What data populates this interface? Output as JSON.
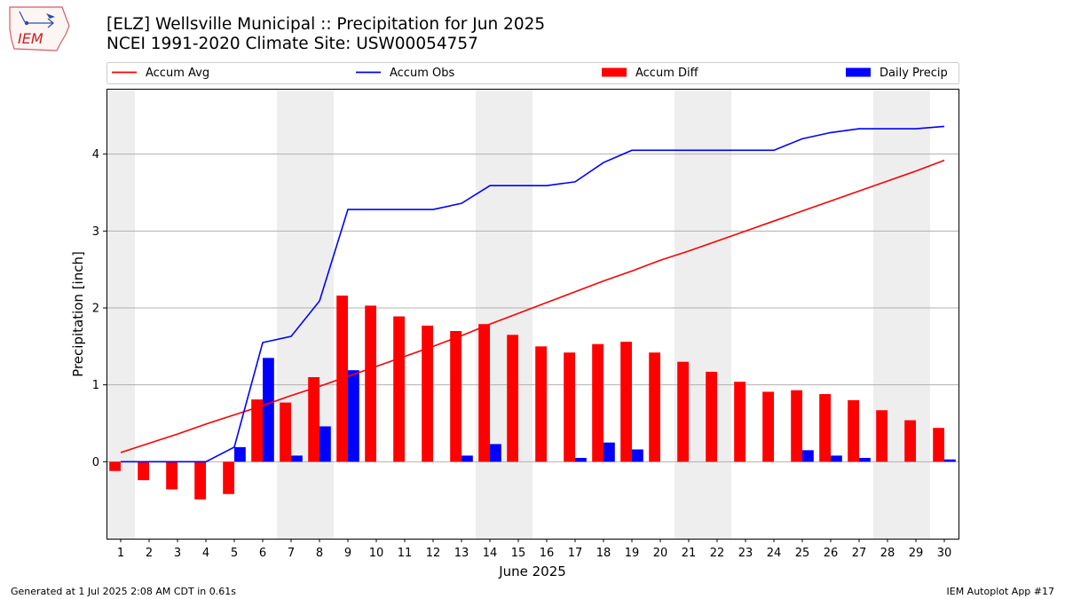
{
  "header": {
    "title": "[ELZ] Wellsville Municipal :: Precipitation for Jun 2025",
    "subtitle": "NCEI 1991-2020 Climate Site: USW00054757"
  },
  "logo": {
    "text": "IEM"
  },
  "footer": {
    "left": "Generated at 1 Jul 2025 2:08 AM CDT in 0.61s",
    "right": "IEM Autoplot App #17"
  },
  "colors": {
    "avg": "#ff0000",
    "obs": "#0000ff",
    "diff": "#ff0000",
    "daily": "#0000ff",
    "weekend_shade": "#eeeeee",
    "grid": "#b0b0b0"
  },
  "chart_data": {
    "type": "bar",
    "title": "[ELZ] Wellsville Municipal :: Precipitation for Jun 2025",
    "xlabel": "June 2025",
    "ylabel": "Precipitation [inch]",
    "ylim": [
      -1.0,
      4.85
    ],
    "yticks": [
      0,
      1,
      2,
      3,
      4
    ],
    "xlim": [
      0.5,
      30.5
    ],
    "x": [
      1,
      2,
      3,
      4,
      5,
      6,
      7,
      8,
      9,
      10,
      11,
      12,
      13,
      14,
      15,
      16,
      17,
      18,
      19,
      20,
      21,
      22,
      23,
      24,
      25,
      26,
      27,
      28,
      29,
      30
    ],
    "shaded_days": [
      [
        0.5,
        1.5
      ],
      [
        6.5,
        8.5
      ],
      [
        13.5,
        15.5
      ],
      [
        20.5,
        22.5
      ],
      [
        27.5,
        29.5
      ]
    ],
    "grid": "horizontal",
    "legend": {
      "placement": "top",
      "entries": [
        "Accum Avg",
        "Accum Obs",
        "Accum Diff",
        "Daily Precip"
      ]
    },
    "series": [
      {
        "name": "Accum Avg",
        "kind": "line",
        "values": [
          0.12,
          0.24,
          0.36,
          0.49,
          0.61,
          0.73,
          0.86,
          0.98,
          1.11,
          1.24,
          1.37,
          1.5,
          1.64,
          1.79,
          1.93,
          2.07,
          2.21,
          2.35,
          2.48,
          2.62,
          2.74,
          2.87,
          3.0,
          3.13,
          3.26,
          3.39,
          3.52,
          3.65,
          3.78,
          3.92
        ]
      },
      {
        "name": "Accum Obs",
        "kind": "line",
        "values": [
          0,
          0,
          0,
          0,
          0.19,
          1.55,
          1.63,
          2.09,
          3.28,
          3.28,
          3.28,
          3.28,
          3.36,
          3.59,
          3.59,
          3.59,
          3.64,
          3.89,
          4.05,
          4.05,
          4.05,
          4.05,
          4.05,
          4.05,
          4.2,
          4.28,
          4.33,
          4.33,
          4.33,
          4.36
        ]
      },
      {
        "name": "Accum Diff",
        "kind": "bar",
        "values": [
          -0.12,
          -0.24,
          -0.36,
          -0.49,
          -0.42,
          0.81,
          0.77,
          1.1,
          2.16,
          2.03,
          1.89,
          1.77,
          1.7,
          1.79,
          1.65,
          1.5,
          1.42,
          1.53,
          1.56,
          1.42,
          1.3,
          1.17,
          1.04,
          0.91,
          0.93,
          0.88,
          0.8,
          0.67,
          0.54,
          0.44
        ]
      },
      {
        "name": "Daily Precip",
        "kind": "bar",
        "values": [
          0,
          0,
          0,
          0,
          0.19,
          1.35,
          0.08,
          0.46,
          1.19,
          0,
          0,
          0,
          0.08,
          0.23,
          0,
          0,
          0.05,
          0.25,
          0.16,
          0,
          0,
          0,
          0,
          0,
          0.15,
          0.08,
          0.05,
          0,
          0,
          0.03
        ]
      }
    ]
  }
}
